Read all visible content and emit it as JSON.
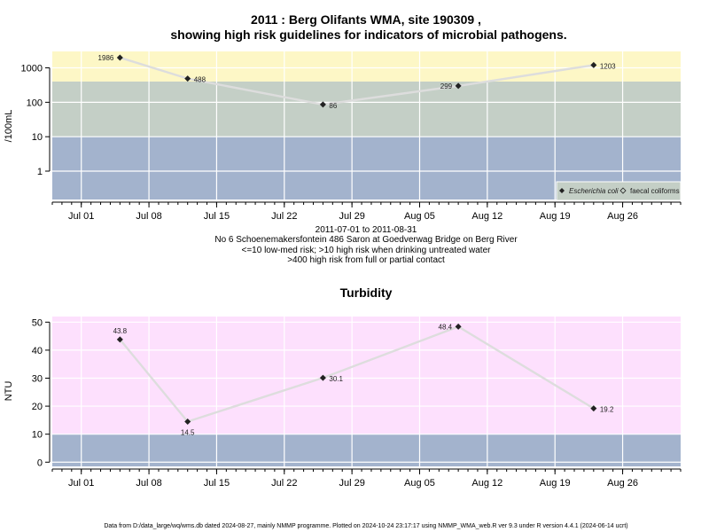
{
  "chart_data": [
    {
      "type": "scatter",
      "title_line1": "2011 : Berg Olifants WMA, site 190309 ,",
      "title_line2": "showing high risk guidelines for indicators of microbial pathogens.",
      "ylabel": "/100mL",
      "yscale": "log",
      "ylim": [
        0.15,
        3000
      ],
      "yticks": [
        {
          "v": 1,
          "label": "1"
        },
        {
          "v": 10,
          "label": "10"
        },
        {
          "v": 100,
          "label": "100"
        },
        {
          "v": 1000,
          "label": "1000"
        }
      ],
      "xlim": [
        "2011-06-28",
        "2011-09-01"
      ],
      "xticks": [
        {
          "date": "2011-07-01",
          "label": "Jul 01"
        },
        {
          "date": "2011-07-08",
          "label": "Jul 08"
        },
        {
          "date": "2011-07-15",
          "label": "Jul 15"
        },
        {
          "date": "2011-07-22",
          "label": "Jul 22"
        },
        {
          "date": "2011-07-29",
          "label": "Jul 29"
        },
        {
          "date": "2011-08-05",
          "label": "Aug 05"
        },
        {
          "date": "2011-08-12",
          "label": "Aug 12"
        },
        {
          "date": "2011-08-19",
          "label": "Aug 19"
        },
        {
          "date": "2011-08-26",
          "label": "Aug 26"
        }
      ],
      "bands": [
        {
          "from": 0.15,
          "to": 10,
          "color": "#a3b3cd"
        },
        {
          "from": 10,
          "to": 400,
          "color": "#c4cfc6"
        },
        {
          "from": 400,
          "to": 3000,
          "color": "#fdf7c6"
        }
      ],
      "grid": true,
      "legend": {
        "placement": "bottom-right",
        "items": [
          {
            "label": "Escherichia coli",
            "italic": true,
            "marker": "filled-diamond"
          },
          {
            "label": "faecal coliforms",
            "italic": false,
            "marker": "open-diamond"
          }
        ]
      },
      "series": [
        {
          "name": "Escherichia coli",
          "points": [
            {
              "date": "2011-07-05",
              "value": 1986,
              "label": "1986",
              "side": "left"
            },
            {
              "date": "2011-07-12",
              "value": 488,
              "label": "488",
              "side": "right"
            },
            {
              "date": "2011-07-26",
              "value": 86,
              "label": "86",
              "side": "right"
            },
            {
              "date": "2011-08-09",
              "value": 299,
              "label": "299",
              "side": "left"
            },
            {
              "date": "2011-08-23",
              "value": 1203,
              "label": "1203",
              "side": "right"
            }
          ]
        }
      ],
      "subtitle_lines": [
        "2011-07-01 to 2011-08-31",
        "No 6 Schoenemakersfontein 486 Saron at Goedverwag Bridge on Berg River",
        "<=10 low-med risk; >10 high risk when drinking untreated water",
        ">400 high risk from full or partial contact"
      ]
    },
    {
      "type": "scatter",
      "title": "Turbidity",
      "ylabel": "NTU",
      "yscale": "linear",
      "ylim": [
        -1.5,
        52
      ],
      "yticks": [
        {
          "v": 0,
          "label": "0"
        },
        {
          "v": 10,
          "label": "10"
        },
        {
          "v": 20,
          "label": "20"
        },
        {
          "v": 30,
          "label": "30"
        },
        {
          "v": 40,
          "label": "40"
        },
        {
          "v": 50,
          "label": "50"
        }
      ],
      "xlim": [
        "2011-06-28",
        "2011-09-01"
      ],
      "xticks": [
        {
          "date": "2011-07-01",
          "label": "Jul 01"
        },
        {
          "date": "2011-07-08",
          "label": "Jul 08"
        },
        {
          "date": "2011-07-15",
          "label": "Jul 15"
        },
        {
          "date": "2011-07-22",
          "label": "Jul 22"
        },
        {
          "date": "2011-07-29",
          "label": "Jul 29"
        },
        {
          "date": "2011-08-05",
          "label": "Aug 05"
        },
        {
          "date": "2011-08-12",
          "label": "Aug 12"
        },
        {
          "date": "2011-08-19",
          "label": "Aug 19"
        },
        {
          "date": "2011-08-26",
          "label": "Aug 26"
        }
      ],
      "bands": [
        {
          "from": -1.5,
          "to": 10,
          "color": "#a3b3cd"
        },
        {
          "from": 10,
          "to": 52,
          "color": "#fde0fd"
        }
      ],
      "grid": true,
      "series": [
        {
          "name": "",
          "points": [
            {
              "date": "2011-07-05",
              "value": 43.8,
              "label": "43.8",
              "side": "above"
            },
            {
              "date": "2011-07-12",
              "value": 14.5,
              "label": "14.5",
              "side": "below"
            },
            {
              "date": "2011-07-26",
              "value": 30.1,
              "label": "30.1",
              "side": "right"
            },
            {
              "date": "2011-08-09",
              "value": 48.4,
              "label": "48.4",
              "side": "left"
            },
            {
              "date": "2011-08-23",
              "value": 19.2,
              "label": "19.2",
              "side": "right"
            }
          ]
        }
      ]
    }
  ],
  "footer": "Data from D:/data_large/wq/wms.db dated 2024-08-27, mainly NMMP programme. Plotted on 2024-10-24 23:17:17 using NMMP_WMA_web.R ver 9.3 under R version 4.4.1 (2024-06-14 ucrt)"
}
